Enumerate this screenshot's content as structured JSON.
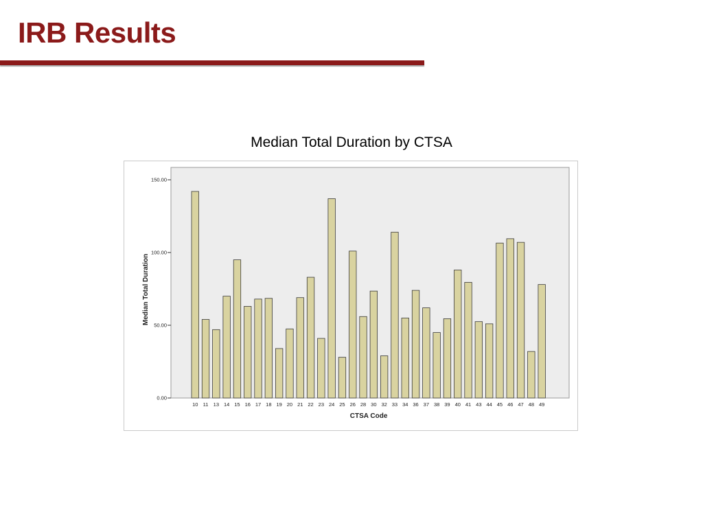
{
  "slide": {
    "title": "IRB Results",
    "accent_color": "#8B1A1A"
  },
  "chart_data": {
    "type": "bar",
    "title": "Median Total Duration by CTSA",
    "xlabel": "CTSA Code",
    "ylabel": "Median Total Duration",
    "categories": [
      "10",
      "11",
      "13",
      "14",
      "15",
      "16",
      "17",
      "18",
      "19",
      "20",
      "21",
      "22",
      "23",
      "24",
      "25",
      "26",
      "28",
      "30",
      "32",
      "33",
      "34",
      "36",
      "37",
      "38",
      "39",
      "40",
      "41",
      "43",
      "44",
      "45",
      "46",
      "47",
      "48",
      "49"
    ],
    "values": [
      142,
      54,
      47,
      70,
      95,
      63,
      68,
      68.5,
      34,
      47.5,
      69,
      83,
      41,
      137,
      28,
      101,
      56,
      73.5,
      29,
      114,
      55,
      74,
      62,
      45,
      54.5,
      88,
      79.5,
      52.5,
      51,
      106.5,
      109.5,
      107,
      32,
      78
    ],
    "yticks": [
      "0.00",
      "50.00",
      "100.00",
      "150.00"
    ],
    "ylim": [
      0,
      150
    ],
    "bar_color": "#D9D3A0",
    "bar_edge_color": "#3a3a3a",
    "plot_background": "#EDEDED",
    "grid": false
  }
}
